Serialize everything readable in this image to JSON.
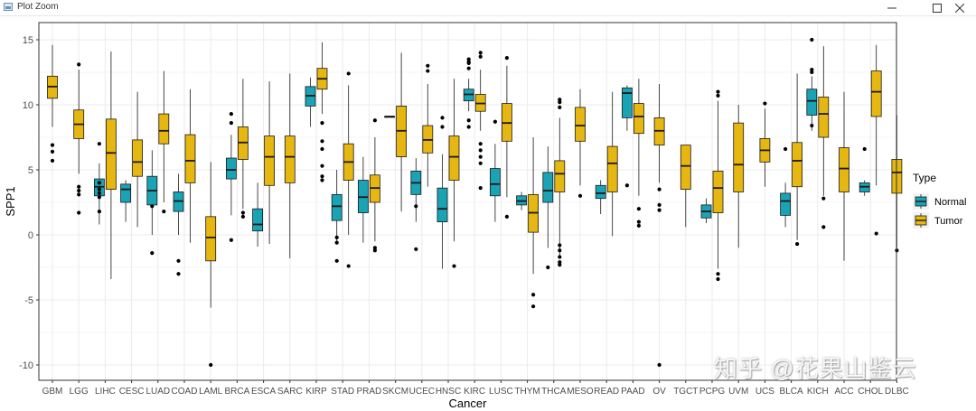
{
  "window": {
    "title": "Plot Zoom"
  },
  "watermark": "知乎 @花果山鉴云",
  "colors": {
    "normal": "#1aa3b4",
    "tumor": "#e6b710",
    "outline": "#1a1a1a",
    "grid": "#ebebeb"
  },
  "chart_data": {
    "type": "boxplot",
    "xlabel": "Cancer",
    "ylabel": "SPP1",
    "ylim": [
      -11,
      16
    ],
    "yticks": [
      -10,
      -5,
      0,
      5,
      10,
      15
    ],
    "legend": {
      "title": "Type",
      "position": "right",
      "entries": [
        "Normal",
        "Tumor"
      ]
    },
    "categories": [
      "GBM",
      "LGG",
      "LIHC",
      "CESC",
      "LUAD",
      "COAD",
      "LAML",
      "BRCA",
      "ESCA",
      "SARC",
      "KIRP",
      "STAD",
      "PRAD",
      "SKCM",
      "UCEC",
      "HNSC",
      "KIRC",
      "LUSC",
      "THYM",
      "THCA",
      "MESO",
      "READ",
      "PAAD",
      "OV",
      "TGCT",
      "PCPG",
      "UVM",
      "UCS",
      "BLCA",
      "KICH",
      "ACC",
      "CHOL",
      "DLBC"
    ],
    "series": [
      {
        "name": "Normal",
        "boxes": [
          {
            "cat": "LIHC",
            "q1": 3.0,
            "med": 3.7,
            "q3": 4.3,
            "lo": 0.8,
            "hi": 5.5,
            "out": [
              7.0,
              4.0,
              3.5,
              3.2,
              2.9,
              1.8
            ]
          },
          {
            "cat": "CESC",
            "q1": 2.5,
            "med": 3.5,
            "q3": 3.9,
            "lo": 1.0,
            "hi": 4.2,
            "out": []
          },
          {
            "cat": "LUAD",
            "q1": 2.3,
            "med": 3.4,
            "q3": 4.5,
            "lo": 0.0,
            "hi": 6.5,
            "out": [
              -1.4,
              2.2
            ]
          },
          {
            "cat": "COAD",
            "q1": 1.8,
            "med": 2.6,
            "q3": 3.3,
            "lo": 0.0,
            "hi": 4.7,
            "out": [
              -2.0,
              -3.0
            ]
          },
          {
            "cat": "BRCA",
            "q1": 4.3,
            "med": 5.0,
            "q3": 5.9,
            "lo": 1.5,
            "hi": 7.7,
            "out": [
              9.3,
              8.6,
              -0.4
            ]
          },
          {
            "cat": "ESCA",
            "q1": 0.3,
            "med": 0.8,
            "q3": 2.0,
            "lo": -0.9,
            "hi": 4.0,
            "out": []
          },
          {
            "cat": "KIRP",
            "q1": 9.9,
            "med": 10.7,
            "q3": 11.4,
            "lo": 8.3,
            "hi": 12.1,
            "out": []
          },
          {
            "cat": "STAD",
            "q1": 1.1,
            "med": 2.2,
            "q3": 3.1,
            "lo": -0.7,
            "hi": 5.0,
            "out": [
              -2.0,
              -0.2,
              -0.6
            ]
          },
          {
            "cat": "PRAD",
            "q1": 1.7,
            "med": 2.9,
            "q3": 4.2,
            "lo": -0.6,
            "hi": 6.0,
            "out": []
          },
          {
            "cat": "SKCM",
            "q1": 9.1,
            "med": 9.1,
            "q3": 9.1,
            "lo": 9.1,
            "hi": 9.1,
            "out": []
          },
          {
            "cat": "UCEC",
            "q1": 3.1,
            "med": 4.0,
            "q3": 4.9,
            "lo": 1.0,
            "hi": 5.9,
            "out": [
              -1.1,
              2.2
            ]
          },
          {
            "cat": "HNSC",
            "q1": 1.0,
            "med": 2.0,
            "q3": 3.6,
            "lo": -2.6,
            "hi": 6.2,
            "out": [
              8.3,
              9.0
            ]
          },
          {
            "cat": "KIRC",
            "q1": 10.3,
            "med": 10.8,
            "q3": 11.2,
            "lo": 9.5,
            "hi": 12.0,
            "out": [
              13.5,
              13.2,
              12.8,
              13.3,
              8.8,
              8.3
            ]
          },
          {
            "cat": "LUSC",
            "q1": 3.0,
            "med": 3.9,
            "q3": 5.1,
            "lo": 1.0,
            "hi": 7.0,
            "out": [
              8.7
            ]
          },
          {
            "cat": "THYM",
            "q1": 2.3,
            "med": 2.6,
            "q3": 3.0,
            "lo": 1.9,
            "hi": 3.3,
            "out": []
          },
          {
            "cat": "THCA",
            "q1": 2.5,
            "med": 3.4,
            "q3": 4.8,
            "lo": -1.0,
            "hi": 6.8,
            "out": [
              -2.5
            ]
          },
          {
            "cat": "READ",
            "q1": 2.8,
            "med": 3.2,
            "q3": 3.8,
            "lo": 1.6,
            "hi": 4.2,
            "out": []
          },
          {
            "cat": "PAAD",
            "q1": 9.0,
            "med": 10.9,
            "q3": 11.3,
            "lo": 8.0,
            "hi": 11.5,
            "out": [
              3.8
            ]
          },
          {
            "cat": "PCPG",
            "q1": 1.3,
            "med": 1.8,
            "q3": 2.3,
            "lo": 0.9,
            "hi": 2.8,
            "out": []
          },
          {
            "cat": "BLCA",
            "q1": 1.5,
            "med": 2.6,
            "q3": 3.2,
            "lo": 0.6,
            "hi": 4.0,
            "out": [
              6.6
            ]
          },
          {
            "cat": "KICH",
            "q1": 9.2,
            "med": 10.3,
            "q3": 11.2,
            "lo": 8.0,
            "hi": 12.2,
            "out": [
              15.0,
              12.7,
              12.5,
              8.4
            ]
          },
          {
            "cat": "CHOL",
            "q1": 3.3,
            "med": 3.7,
            "q3": 4.0,
            "lo": 3.0,
            "hi": 4.2,
            "out": [
              6.6
            ]
          }
        ]
      },
      {
        "name": "Tumor",
        "boxes": [
          {
            "cat": "GBM",
            "q1": 10.5,
            "med": 11.4,
            "q3": 12.2,
            "lo": 8.3,
            "hi": 14.6,
            "out": [
              6.9,
              6.4,
              5.7
            ]
          },
          {
            "cat": "LGG",
            "q1": 7.4,
            "med": 8.5,
            "q3": 9.6,
            "lo": 4.7,
            "hi": 12.7,
            "out": [
              13.1,
              3.7,
              3.4,
              3.1,
              1.7
            ]
          },
          {
            "cat": "LIHC",
            "q1": 3.5,
            "med": 6.3,
            "q3": 8.9,
            "lo": -3.4,
            "hi": 14.1,
            "out": []
          },
          {
            "cat": "CESC",
            "q1": 4.5,
            "med": 5.6,
            "q3": 7.3,
            "lo": 0.6,
            "hi": 11.0,
            "out": []
          },
          {
            "cat": "LUAD",
            "q1": 7.0,
            "med": 8.0,
            "q3": 9.3,
            "lo": 2.5,
            "hi": 12.6,
            "out": [
              1.8
            ]
          },
          {
            "cat": "COAD",
            "q1": 4.0,
            "med": 5.7,
            "q3": 7.7,
            "lo": -0.6,
            "hi": 11.2,
            "out": []
          },
          {
            "cat": "LAML",
            "q1": -2.0,
            "med": -0.2,
            "q3": 1.4,
            "lo": -5.6,
            "hi": 5.6,
            "out": [
              -10.0
            ]
          },
          {
            "cat": "BRCA",
            "q1": 5.8,
            "med": 7.1,
            "q3": 8.3,
            "lo": 2.0,
            "hi": 12.0,
            "out": [
              1.7,
              1.4
            ]
          },
          {
            "cat": "ESCA",
            "q1": 3.8,
            "med": 6.0,
            "q3": 7.6,
            "lo": -0.7,
            "hi": 11.8,
            "out": []
          },
          {
            "cat": "SARC",
            "q1": 4.0,
            "med": 6.0,
            "q3": 7.6,
            "lo": -1.8,
            "hi": 12.4,
            "out": []
          },
          {
            "cat": "KIRP",
            "q1": 11.2,
            "med": 12.0,
            "q3": 12.8,
            "lo": 9.3,
            "hi": 14.8,
            "out": [
              8.6,
              7.2,
              6.6,
              5.3,
              4.5,
              4.2
            ]
          },
          {
            "cat": "STAD",
            "q1": 4.2,
            "med": 5.6,
            "q3": 7.0,
            "lo": 0.0,
            "hi": 11.5,
            "out": [
              12.4,
              -2.4
            ]
          },
          {
            "cat": "PRAD",
            "q1": 2.5,
            "med": 3.6,
            "q3": 4.6,
            "lo": -0.5,
            "hi": 7.5,
            "out": [
              8.8,
              -1.0,
              -1.2
            ]
          },
          {
            "cat": "SKCM",
            "q1": 6.0,
            "med": 8.0,
            "q3": 9.9,
            "lo": 1.8,
            "hi": 14.0,
            "out": []
          },
          {
            "cat": "UCEC",
            "q1": 6.3,
            "med": 7.3,
            "q3": 8.4,
            "lo": 3.7,
            "hi": 11.6,
            "out": [
              13.0,
              12.6
            ]
          },
          {
            "cat": "HNSC",
            "q1": 4.2,
            "med": 6.0,
            "q3": 7.6,
            "lo": -0.5,
            "hi": 12.0,
            "out": [
              -2.4
            ]
          },
          {
            "cat": "KIRC",
            "q1": 9.5,
            "med": 10.1,
            "q3": 10.8,
            "lo": 8.0,
            "hi": 12.7,
            "out": [
              14.0,
              13.7,
              7.0,
              6.5,
              6.0,
              5.5,
              3.6
            ]
          },
          {
            "cat": "LUSC",
            "q1": 7.2,
            "med": 8.6,
            "q3": 10.1,
            "lo": 2.9,
            "hi": 13.0,
            "out": [
              13.6,
              1.4
            ]
          },
          {
            "cat": "THYM",
            "q1": 0.2,
            "med": 1.7,
            "q3": 3.1,
            "lo": -3.0,
            "hi": 7.5,
            "out": [
              -4.6,
              -5.5
            ]
          },
          {
            "cat": "THCA",
            "q1": 3.3,
            "med": 4.7,
            "q3": 5.7,
            "lo": -1.8,
            "hi": 9.0,
            "out": [
              10.4,
              10.2,
              9.8,
              -0.8,
              -1.2,
              -1.7,
              -2.1,
              -2.3
            ]
          },
          {
            "cat": "MESO",
            "q1": 7.2,
            "med": 8.4,
            "q3": 9.8,
            "lo": 3.8,
            "hi": 11.2,
            "out": [
              3.0
            ]
          },
          {
            "cat": "READ",
            "q1": 3.3,
            "med": 5.5,
            "q3": 6.8,
            "lo": -0.1,
            "hi": 11.0,
            "out": []
          },
          {
            "cat": "PAAD",
            "q1": 7.8,
            "med": 9.1,
            "q3": 10.1,
            "lo": 3.0,
            "hi": 12.0,
            "out": [
              2.0,
              1.0,
              0.7
            ]
          },
          {
            "cat": "OV",
            "q1": 6.9,
            "med": 8.0,
            "q3": 9.0,
            "lo": 4.0,
            "hi": 11.6,
            "out": [
              3.5,
              2.3,
              1.9,
              -10.0
            ]
          },
          {
            "cat": "TGCT",
            "q1": 3.5,
            "med": 5.3,
            "q3": 6.9,
            "lo": 0.6,
            "hi": 6.9,
            "out": []
          },
          {
            "cat": "PCPG",
            "q1": 1.7,
            "med": 3.6,
            "q3": 4.9,
            "lo": -2.6,
            "hi": 10.3,
            "out": [
              11.0,
              10.7,
              -3.0,
              -3.4
            ]
          },
          {
            "cat": "UVM",
            "q1": 3.3,
            "med": 5.4,
            "q3": 8.6,
            "lo": -1.0,
            "hi": 10.0,
            "out": []
          },
          {
            "cat": "UCS",
            "q1": 5.6,
            "med": 6.5,
            "q3": 7.4,
            "lo": 3.7,
            "hi": 9.7,
            "out": [
              10.1
            ]
          },
          {
            "cat": "BLCA",
            "q1": 3.7,
            "med": 5.7,
            "q3": 7.1,
            "lo": -0.4,
            "hi": 12.4,
            "out": [
              -0.7
            ]
          },
          {
            "cat": "KICH",
            "q1": 7.5,
            "med": 9.3,
            "q3": 10.6,
            "lo": 3.0,
            "hi": 14.5,
            "out": [
              2.8,
              0.6
            ]
          },
          {
            "cat": "ACC",
            "q1": 3.3,
            "med": 5.1,
            "q3": 6.7,
            "lo": -2.0,
            "hi": 11.0,
            "out": []
          },
          {
            "cat": "CHOL",
            "q1": 9.1,
            "med": 11.0,
            "q3": 12.6,
            "lo": 3.8,
            "hi": 14.6,
            "out": [
              0.1
            ]
          },
          {
            "cat": "DLBC",
            "q1": 3.2,
            "med": 4.8,
            "q3": 5.8,
            "lo": -1.0,
            "hi": 9.2,
            "out": [
              -1.2
            ]
          }
        ]
      }
    ]
  }
}
